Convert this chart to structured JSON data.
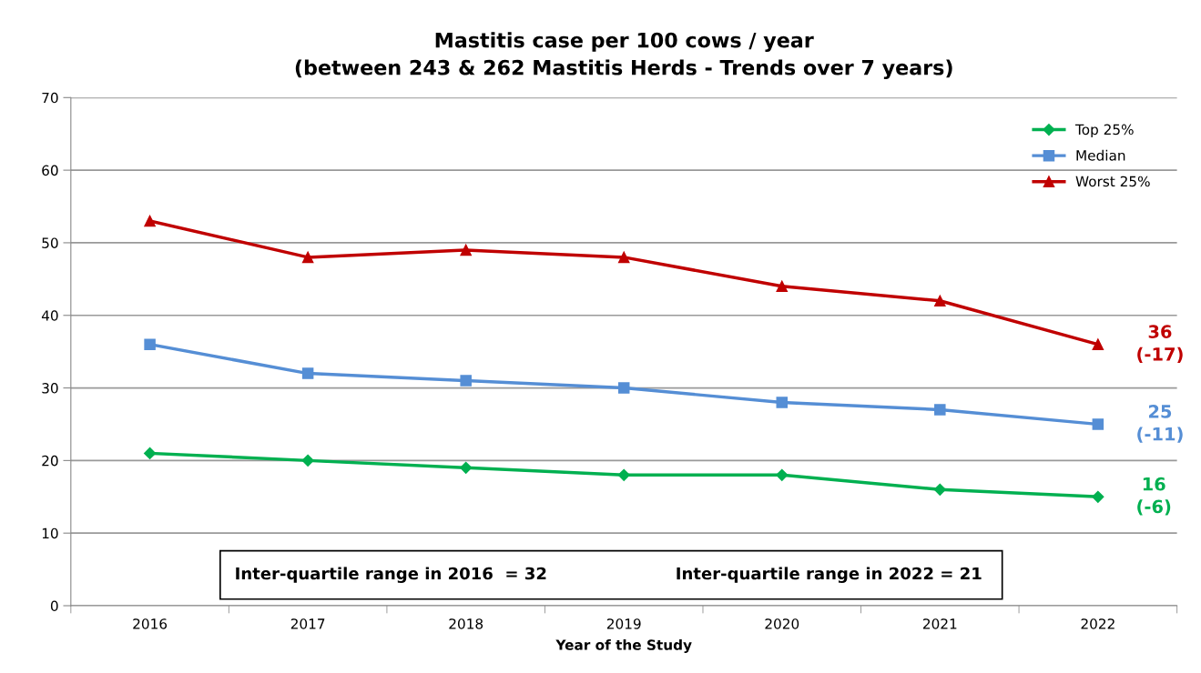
{
  "chart_data": {
    "type": "line",
    "title": "Mastitis case per 100 cows / year\n(between 243 & 262 Mastitis Herds - Trends over 7 years)",
    "xlabel": "Year of the Study",
    "categories": [
      "2016",
      "2017",
      "2018",
      "2019",
      "2020",
      "2021",
      "2022"
    ],
    "series": [
      {
        "name": "Top 25%",
        "color": "#00b050",
        "marker": "diamond",
        "values": [
          21,
          20,
          19,
          18,
          18,
          16,
          15
        ]
      },
      {
        "name": "Median",
        "color": "#558ed5",
        "marker": "square",
        "values": [
          36,
          32,
          31,
          30,
          28,
          27,
          25
        ]
      },
      {
        "name": "Worst 25%",
        "color": "#c00000",
        "marker": "triangle",
        "values": [
          53,
          48,
          49,
          48,
          44,
          42,
          36
        ]
      }
    ],
    "ylim": [
      0,
      70
    ],
    "yticks": [
      0,
      10,
      20,
      30,
      40,
      50,
      60,
      70
    ],
    "grid": "y",
    "legend": "top right",
    "line_style": "solid",
    "annotations": [
      {
        "text": "36\n(-17)",
        "x": "2022",
        "y": 36
      },
      {
        "text": "25\n(-11)",
        "x": "2022",
        "y": 25
      },
      {
        "text": "16\n(-6)",
        "x": "2022",
        "y": 15
      },
      "Inter-quartile range in 2016  = 32",
      "Inter-quartile range in 2022 = 21"
    ]
  }
}
